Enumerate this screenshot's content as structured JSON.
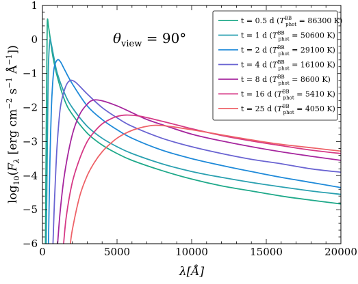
{
  "chart_data": {
    "type": "line",
    "xlabel": "λ[Å]",
    "ylabel": "log10(Fλ [erg cm−2 s−1 Å−1])",
    "xlim": [
      0,
      20000
    ],
    "ylim": [
      -6,
      1
    ],
    "x_ticks": [
      0,
      5000,
      10000,
      15000,
      20000
    ],
    "y_ticks": [
      -6,
      -5,
      -4,
      -3,
      -2,
      -1,
      0,
      1
    ],
    "x_tick_labels": [
      "0",
      "5000",
      "10000",
      "15000",
      "20000"
    ],
    "y_tick_labels": [
      "−6",
      "−5",
      "−4",
      "−3",
      "−2",
      "−1",
      "0",
      "1"
    ],
    "annotation": "θview = 90°",
    "annotation_parts": {
      "symbol": "θ",
      "subscript": "view",
      "equals": " = 90°"
    },
    "legend_position": "top-right",
    "grid": false,
    "series": [
      {
        "name": "t = 0.5 d (Tphot BB = 86300 K)",
        "label_main": "t = 0.5 d (",
        "label_T": "T",
        "label_sup": "BB",
        "label_sub": "phot",
        "label_tail": " = 86300 K)",
        "color": "#1fa98a",
        "peak": {
          "x": 330,
          "y": 0.55
        },
        "x": [
          200,
          250,
          300,
          330,
          400,
          500,
          700,
          1000,
          1500,
          2000,
          3000,
          4000,
          5000,
          6000,
          8000,
          10000,
          12000,
          14000,
          16000,
          18000,
          20000
        ],
        "y": [
          -6.1,
          -3.0,
          -0.5,
          0.55,
          0.4,
          0.1,
          -0.5,
          -1.1,
          -1.8,
          -2.2,
          -2.75,
          -3.1,
          -3.35,
          -3.55,
          -3.85,
          -4.1,
          -4.3,
          -4.45,
          -4.6,
          -4.72,
          -4.83
        ]
      },
      {
        "name": "t = 1 d (Tphot BB = 50600 K)",
        "label_main": "t = 1 d (",
        "label_T": "T",
        "label_sup": "BB",
        "label_sub": "phot",
        "label_tail": " = 50600 K)",
        "color": "#2aa0b0",
        "peak": {
          "x": 500,
          "y": -0.02
        },
        "x": [
          250,
          300,
          350,
          400,
          500,
          600,
          800,
          1000,
          1500,
          2000,
          3000,
          4000,
          5000,
          6000,
          8000,
          10000,
          12000,
          14000,
          16000,
          18000,
          20000
        ],
        "y": [
          -6.1,
          -4.2,
          -2.3,
          -0.8,
          -0.02,
          -0.15,
          -0.6,
          -1.0,
          -1.6,
          -2.0,
          -2.55,
          -2.9,
          -3.15,
          -3.35,
          -3.65,
          -3.88,
          -4.05,
          -4.2,
          -4.33,
          -4.45,
          -4.55
        ]
      },
      {
        "name": "t = 2 d (Tphot BB = 29100 K)",
        "label_main": "t = 2 d (",
        "label_T": "T",
        "label_sup": "BB",
        "label_sub": "phot",
        "label_tail": " = 29100 K)",
        "color": "#1f8ad9",
        "peak": {
          "x": 1000,
          "y": -0.6
        },
        "x": [
          400,
          450,
          500,
          600,
          700,
          800,
          1000,
          1200,
          1500,
          2000,
          3000,
          4000,
          5000,
          6000,
          8000,
          10000,
          12000,
          14000,
          16000,
          18000,
          20000
        ],
        "y": [
          -6.1,
          -4.8,
          -3.6,
          -2.0,
          -1.2,
          -0.8,
          -0.6,
          -0.65,
          -0.9,
          -1.3,
          -1.95,
          -2.35,
          -2.65,
          -2.9,
          -3.25,
          -3.5,
          -3.7,
          -3.88,
          -4.05,
          -4.2,
          -4.35
        ]
      },
      {
        "name": "t = 4 d (Tphot BB = 16100 K)",
        "label_main": "t = 4 d (",
        "label_T": "T",
        "label_sup": "BB",
        "label_sub": "phot",
        "label_tail": " = 16100 K)",
        "color": "#6a64d2",
        "peak": {
          "x": 1800,
          "y": -1.22
        },
        "x": [
          700,
          800,
          900,
          1000,
          1200,
          1500,
          1800,
          2200,
          3000,
          4000,
          5000,
          6000,
          8000,
          10000,
          12000,
          14000,
          16000,
          18000,
          20000
        ],
        "y": [
          -6.1,
          -4.8,
          -3.8,
          -3.0,
          -2.0,
          -1.45,
          -1.22,
          -1.25,
          -1.6,
          -2.0,
          -2.3,
          -2.55,
          -2.9,
          -3.15,
          -3.35,
          -3.52,
          -3.65,
          -3.8,
          -3.9
        ]
      },
      {
        "name": "t = 8 d (Tphot BB = 8600 K)",
        "label_main": "t = 8 d (",
        "label_T": "T",
        "label_sup": "BB",
        "label_sub": "phot",
        "label_tail": " = 8600 K)",
        "color": "#a6269e",
        "peak": {
          "x": 3400,
          "y": -1.78
        },
        "x": [
          1000,
          1200,
          1500,
          2000,
          2500,
          3000,
          3400,
          4000,
          5000,
          6000,
          7000,
          8000,
          10000,
          12000,
          14000,
          16000,
          18000,
          20000
        ],
        "y": [
          -6.1,
          -5.0,
          -3.9,
          -2.8,
          -2.2,
          -1.9,
          -1.78,
          -1.8,
          -1.95,
          -2.15,
          -2.35,
          -2.5,
          -2.78,
          -2.98,
          -3.15,
          -3.3,
          -3.43,
          -3.55
        ]
      },
      {
        "name": "t = 16 d (Tphot BB = 5410 K)",
        "label_main": "t = 16 d (",
        "label_T": "T",
        "label_sup": "BB",
        "label_sub": "phot",
        "label_tail": " = 5410 K)",
        "color": "#d63a86",
        "peak": {
          "x": 5600,
          "y": -2.22
        },
        "x": [
          1400,
          1600,
          2000,
          2500,
          3000,
          3500,
          4000,
          4500,
          5000,
          5600,
          6500,
          8000,
          10000,
          12000,
          14000,
          16000,
          18000,
          20000
        ],
        "y": [
          -6.1,
          -5.2,
          -4.2,
          -3.5,
          -3.0,
          -2.7,
          -2.48,
          -2.35,
          -2.26,
          -2.22,
          -2.25,
          -2.4,
          -2.62,
          -2.82,
          -2.98,
          -3.12,
          -3.25,
          -3.35
        ]
      },
      {
        "name": "t = 25 d (Tphot BB = 4050 K)",
        "label_main": "t = 25 d (",
        "label_T": "T",
        "label_sup": "BB",
        "label_sub": "phot",
        "label_tail": " = 4050 K)",
        "color": "#ee6268",
        "peak": {
          "x": 7600,
          "y": -2.52
        },
        "x": [
          1850,
          2000,
          2500,
          3000,
          3500,
          4000,
          4500,
          5000,
          5500,
          6000,
          6500,
          7000,
          7600,
          8500,
          10000,
          12000,
          14000,
          16000,
          18000,
          20000
        ],
        "y": [
          -6.1,
          -5.6,
          -4.6,
          -4.0,
          -3.6,
          -3.3,
          -3.08,
          -2.9,
          -2.77,
          -2.67,
          -2.6,
          -2.55,
          -2.52,
          -2.55,
          -2.65,
          -2.8,
          -2.95,
          -3.08,
          -3.18,
          -3.28
        ]
      }
    ]
  }
}
